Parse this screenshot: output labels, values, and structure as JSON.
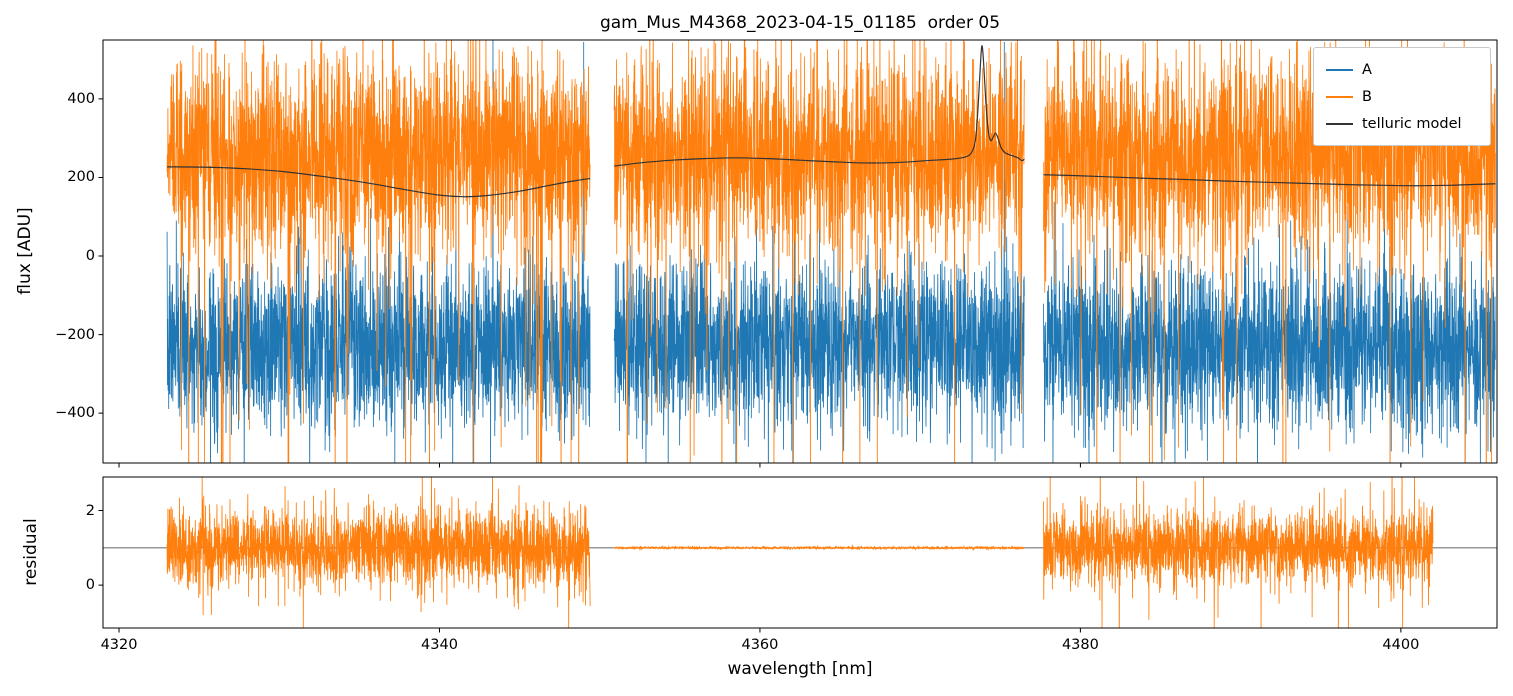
{
  "chart_data": {
    "type": "line",
    "title": "gam_Mus_M4368_2023-04-15_01185  order 05",
    "xlabel": "wavelength [nm]",
    "ylabel_top": "flux [ADU]",
    "ylabel_bottom": "residual",
    "xlim": [
      4319,
      4406
    ],
    "xticks": [
      4320,
      4340,
      4360,
      4380,
      4400
    ],
    "xtick_labels": [
      "4320",
      "4340",
      "4360",
      "4380",
      "4400"
    ],
    "top_panel": {
      "ylim": [
        -527,
        550
      ],
      "yticks": [
        -400,
        -200,
        0,
        200,
        400
      ],
      "ytick_labels": [
        "−400",
        "−200",
        "0",
        "200",
        "400"
      ]
    },
    "bottom_panel": {
      "ylim": [
        -1.15,
        2.9
      ],
      "yticks": [
        0,
        2
      ],
      "ytick_labels": [
        "0",
        "2"
      ],
      "reference_line": 1
    },
    "points_per_nm": 80,
    "seed": 7,
    "segments": [
      {
        "start": 4323.0,
        "end": 4349.4,
        "res_end": 4349.4
      },
      {
        "start": 4350.9,
        "end": 4376.5,
        "res_end": 4376.5
      },
      {
        "start": 4377.7,
        "end": 4405.9,
        "res_end": 4402.0
      }
    ],
    "series": [
      {
        "name": "A",
        "color": "#1f77b4",
        "mean": -228,
        "std": 105,
        "up_spike_prob": 0.0006,
        "tall_spikes": [
          4349.0,
          4375.25
        ]
      },
      {
        "name": "B",
        "color": "#ff7f0e",
        "mean": 262,
        "std": 128,
        "down_spike_probs": [
          0.02,
          0.009,
          0.013
        ]
      },
      {
        "name": "telluric model",
        "color": "#333333"
      }
    ],
    "telluric_segments": [
      [
        [
          4323.0,
          227
        ],
        [
          4325.5,
          226
        ],
        [
          4328,
          222
        ],
        [
          4330.5,
          214
        ],
        [
          4333,
          201
        ],
        [
          4335.5,
          186
        ],
        [
          4338,
          168
        ],
        [
          4340,
          155
        ],
        [
          4341.5,
          151
        ],
        [
          4343,
          154
        ],
        [
          4345,
          165
        ],
        [
          4347,
          181
        ],
        [
          4348.5,
          192
        ],
        [
          4349.4,
          197
        ]
      ],
      [
        [
          4350.9,
          229
        ],
        [
          4352.5,
          237
        ],
        [
          4354.5,
          244
        ],
        [
          4356.5,
          248
        ],
        [
          4358.5,
          250
        ],
        [
          4360.5,
          248
        ],
        [
          4362.5,
          244
        ],
        [
          4364.5,
          240
        ],
        [
          4366.5,
          237
        ],
        [
          4368.5,
          238
        ],
        [
          4370.5,
          243
        ],
        [
          4372.0,
          247
        ],
        [
          4372.8,
          252
        ],
        [
          4373.2,
          263
        ],
        [
          4373.45,
          295
        ],
        [
          4373.6,
          370
        ],
        [
          4373.75,
          480
        ],
        [
          4373.85,
          535
        ],
        [
          4373.95,
          498
        ],
        [
          4374.1,
          392
        ],
        [
          4374.25,
          318
        ],
        [
          4374.4,
          294
        ],
        [
          4374.55,
          302
        ],
        [
          4374.7,
          313
        ],
        [
          4374.85,
          301
        ],
        [
          4375.05,
          276
        ],
        [
          4375.3,
          263
        ],
        [
          4375.7,
          256
        ],
        [
          4376.1,
          250
        ],
        [
          4376.35,
          243
        ],
        [
          4376.5,
          247
        ]
      ],
      [
        [
          4377.7,
          207
        ],
        [
          4379.5,
          205
        ],
        [
          4381.5,
          202
        ],
        [
          4384,
          198
        ],
        [
          4386.5,
          195
        ],
        [
          4389,
          191
        ],
        [
          4391.5,
          188
        ],
        [
          4394,
          185
        ],
        [
          4396.5,
          182
        ],
        [
          4399,
          180
        ],
        [
          4401,
          179
        ],
        [
          4403,
          180
        ],
        [
          4404.5,
          182
        ],
        [
          4405.9,
          184
        ]
      ]
    ],
    "residual": {
      "color": "#ff7f0e",
      "mean": 1,
      "stds": [
        0.55,
        0.018,
        0.5
      ],
      "tail_prob": 0.01,
      "line_color": "#333333"
    }
  }
}
